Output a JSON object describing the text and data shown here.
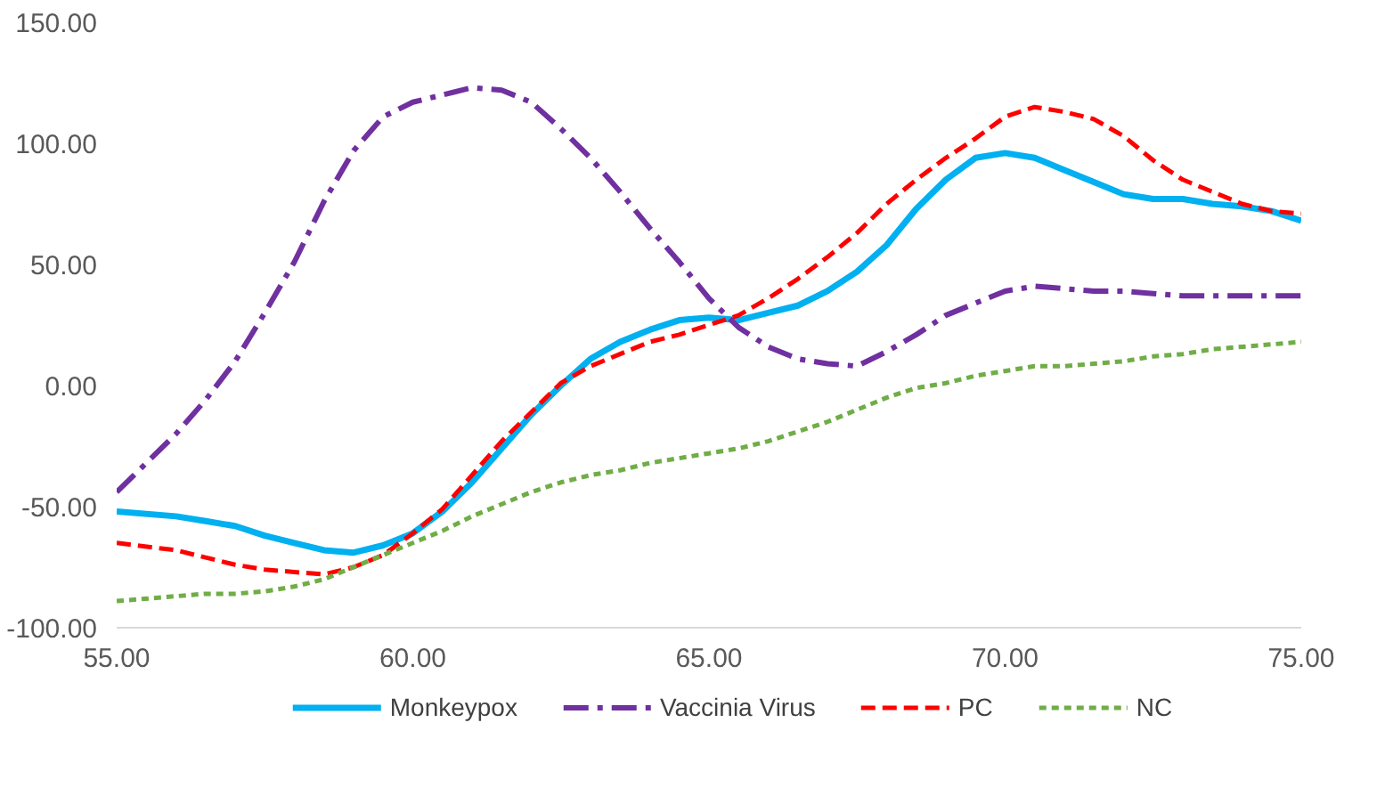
{
  "chart_data": {
    "type": "line",
    "x": [
      55,
      56,
      56.5,
      57,
      57.5,
      58,
      58.5,
      59,
      59.5,
      60,
      60.5,
      61,
      61.5,
      62,
      62.5,
      63,
      63.5,
      64,
      64.5,
      65,
      65.5,
      66,
      66.5,
      67,
      67.5,
      68,
      68.5,
      69,
      69.5,
      70,
      70.5,
      71,
      71.5,
      72,
      72.5,
      73,
      73.5,
      74,
      74.5,
      75
    ],
    "series": [
      {
        "name": "Monkeypox",
        "color": "#00b0f0",
        "line_style": "solid",
        "values": [
          -52,
          -54,
          -56,
          -58,
          -62,
          -65,
          -68,
          -69,
          -66,
          -61,
          -52,
          -40,
          -26,
          -12,
          0,
          11,
          18,
          23,
          27,
          28,
          27,
          30,
          33,
          39,
          47,
          58,
          73,
          85,
          94,
          96,
          94,
          89,
          84,
          79,
          77,
          77,
          75,
          74,
          72,
          68
        ]
      },
      {
        "name": "Vaccinia Virus",
        "color": "#7030a0",
        "line_style": "dashdot",
        "values": [
          -44,
          -20,
          -6,
          10,
          30,
          51,
          76,
          97,
          111,
          117,
          120,
          123,
          122,
          117,
          106,
          94,
          80,
          65,
          51,
          36,
          24,
          16,
          11,
          9,
          8,
          14,
          21,
          29,
          34,
          39,
          41,
          40,
          39,
          39,
          38,
          37,
          37,
          37,
          37,
          37
        ]
      },
      {
        "name": "PC",
        "color": "#ff0000",
        "line_style": "dashed",
        "values": [
          -65,
          -68,
          -71,
          -74,
          -76,
          -77,
          -78,
          -75,
          -70,
          -61,
          -51,
          -37,
          -23,
          -11,
          1,
          8,
          13,
          18,
          21,
          25,
          29,
          36,
          44,
          53,
          63,
          75,
          85,
          94,
          102,
          111,
          115,
          113,
          110,
          103,
          93,
          85,
          80,
          75,
          72,
          71
        ]
      },
      {
        "name": "NC",
        "color": "#70ad47",
        "line_style": "dotted",
        "values": [
          -89,
          -87,
          -86,
          -86,
          -85,
          -83,
          -80,
          -75,
          -70,
          -65,
          -60,
          -54,
          -49,
          -44,
          -40,
          -37,
          -35,
          -32,
          -30,
          -28,
          -26,
          -23,
          -19,
          -15,
          -10,
          -5,
          -1,
          1,
          4,
          6,
          8,
          8,
          9,
          10,
          12,
          13,
          15,
          16,
          17,
          18
        ]
      }
    ],
    "xlim": [
      55,
      75
    ],
    "ylim": [
      -100,
      150
    ],
    "xticks": [
      {
        "value": 55,
        "label": "55.00"
      },
      {
        "value": 60,
        "label": "60.00"
      },
      {
        "value": 65,
        "label": "65.00"
      },
      {
        "value": 70,
        "label": "70.00"
      },
      {
        "value": 75,
        "label": "75.00"
      }
    ],
    "yticks": [
      {
        "value": -100,
        "label": "-100.00"
      },
      {
        "value": -50,
        "label": "-50.00"
      },
      {
        "value": 0,
        "label": "0.00"
      },
      {
        "value": 50,
        "label": "50.00"
      },
      {
        "value": 100,
        "label": "100.00"
      },
      {
        "value": 150,
        "label": "150.00"
      }
    ],
    "grid": false,
    "legend": "bottom"
  }
}
